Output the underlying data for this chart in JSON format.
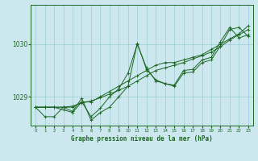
{
  "background_color": "#cce8ee",
  "grid_color": "#99ccd4",
  "line_color": "#1a6620",
  "text_color": "#1a6620",
  "xlabel": "Graphe pression niveau de la mer (hPa)",
  "ylabel_ticks": [
    1029,
    1030
  ],
  "xlim": [
    -0.5,
    23.5
  ],
  "ylim": [
    1028.45,
    1030.75
  ],
  "x_ticks": [
    0,
    1,
    2,
    3,
    4,
    5,
    6,
    7,
    8,
    9,
    10,
    11,
    12,
    13,
    14,
    15,
    16,
    17,
    18,
    19,
    20,
    21,
    22,
    23
  ],
  "series": [
    [
      1028.8,
      1028.8,
      1028.8,
      1028.75,
      1028.7,
      1028.9,
      1028.62,
      1028.78,
      1029.0,
      1029.15,
      1029.45,
      1030.0,
      1029.55,
      1029.3,
      1029.25,
      1029.22,
      1029.5,
      1029.52,
      1029.7,
      1029.75,
      1030.05,
      1030.32,
      1030.12,
      1030.18
    ],
    [
      1028.8,
      1028.62,
      1028.62,
      1028.8,
      1028.72,
      1028.97,
      1028.55,
      1028.7,
      1028.8,
      1029.0,
      1029.2,
      1030.02,
      1029.52,
      1029.32,
      1029.25,
      1029.2,
      1029.45,
      1029.47,
      1029.65,
      1029.7,
      1029.97,
      1030.28,
      1030.32,
      1030.15
    ],
    [
      1028.8,
      1028.8,
      1028.8,
      1028.8,
      1028.8,
      1028.9,
      1028.9,
      1029.0,
      1029.1,
      1029.2,
      1029.3,
      1029.4,
      1029.5,
      1029.6,
      1029.65,
      1029.65,
      1029.7,
      1029.75,
      1029.8,
      1029.9,
      1030.0,
      1030.1,
      1030.2,
      1030.35
    ],
    [
      1028.8,
      1028.8,
      1028.8,
      1028.8,
      1028.82,
      1028.88,
      1028.92,
      1028.98,
      1029.05,
      1029.12,
      1029.2,
      1029.3,
      1029.4,
      1029.5,
      1029.55,
      1029.6,
      1029.65,
      1029.72,
      1029.78,
      1029.85,
      1029.95,
      1030.08,
      1030.18,
      1030.28
    ]
  ]
}
